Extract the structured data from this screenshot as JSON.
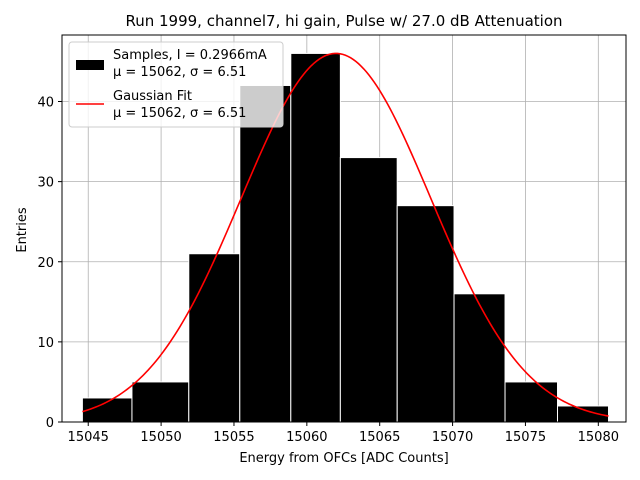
{
  "chart_data": {
    "type": "bar",
    "title": "Run 1999, channel7, hi gain, Pulse w/ 27.0 dB Attenuation",
    "xlabel": "Energy from OFCs [ADC Counts]",
    "ylabel": "Entries",
    "xlim": [
      15043.2,
      15081.9
    ],
    "ylim": [
      0,
      48.3
    ],
    "x_ticks": [
      15045,
      15050,
      15055,
      15060,
      15065,
      15070,
      15075,
      15080
    ],
    "y_ticks": [
      0,
      10,
      20,
      30,
      40
    ],
    "grid": true,
    "legend_position": "top-left",
    "bins": [
      {
        "left": 15044.6,
        "right": 15048.0,
        "count": 3
      },
      {
        "left": 15048.0,
        "right": 15051.9,
        "count": 5
      },
      {
        "left": 15051.9,
        "right": 15055.4,
        "count": 21
      },
      {
        "left": 15055.4,
        "right": 15058.9,
        "count": 42
      },
      {
        "left": 15058.9,
        "right": 15062.3,
        "count": 46
      },
      {
        "left": 15062.3,
        "right": 15066.2,
        "count": 33
      },
      {
        "left": 15066.2,
        "right": 15070.1,
        "count": 27
      },
      {
        "left": 15070.1,
        "right": 15073.6,
        "count": 16
      },
      {
        "left": 15073.6,
        "right": 15077.2,
        "count": 5
      },
      {
        "left": 15077.2,
        "right": 15080.7,
        "count": 2
      }
    ],
    "series": [
      {
        "name": "Samples, I = 0.2966mA",
        "name_line2": "μ = 15062, σ = 6.51",
        "kind": "histogram",
        "color": "#000000"
      },
      {
        "name": "Gaussian Fit",
        "name_line2": "μ = 15062, σ = 6.51",
        "kind": "gaussian",
        "color": "#ff0000",
        "mu": 15062,
        "sigma": 6.51,
        "amplitude": 46,
        "x_range": [
          15044.6,
          15080.7
        ]
      }
    ]
  }
}
